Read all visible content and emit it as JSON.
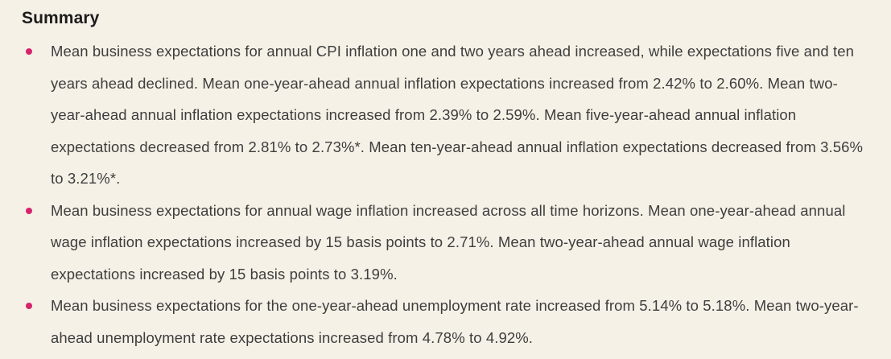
{
  "summary": {
    "title": "Summary",
    "bullet_color": "#d6246c",
    "text_color": "#3e3e3e",
    "background_color": "#f6f1e7",
    "bullets": [
      "Mean business expectations for annual CPI inflation one and two years ahead increased, while expectations five and ten years ahead declined. Mean one-year-ahead annual inflation expectations increased from 2.42% to 2.60%. Mean two-year-ahead annual inflation expectations increased from 2.39% to 2.59%. Mean five-year-ahead annual inflation expectations decreased from 2.81% to 2.73%*. Mean ten-year-ahead annual inflation expectations decreased from 3.56% to 3.21%*.",
      "Mean business expectations for annual wage inflation increased across all time horizons. Mean one-year-ahead annual wage inflation expectations increased by 15 basis points to 2.71%. Mean two-year-ahead annual wage inflation expectations increased by 15 basis points to 3.19%.",
      "Mean business expectations for the one-year-ahead unemployment rate increased from 5.14% to 5.18%. Mean two-year-ahead unemployment rate expectations increased from 4.78% to 4.92%."
    ]
  }
}
